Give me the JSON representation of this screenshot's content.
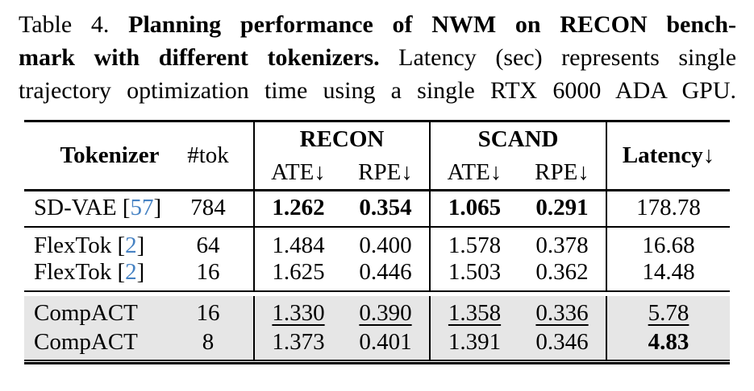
{
  "caption": {
    "label": "Table 4.",
    "line1_bold": "Planning performance of NWM on RECON bench-",
    "line2_bold": "mark with different tokenizers.",
    "line2_normal": "Latency (sec) represents single",
    "line3_normal": "trajectory optimization time using a single RTX 6000 ADA GPU."
  },
  "table": {
    "header": {
      "tokenizer": "Tokenizer",
      "tok": "#tok",
      "recon": "RECON",
      "scand": "SCAND",
      "ate": "ATE↓",
      "rpe": "RPE↓",
      "latency": "Latency↓"
    },
    "rows": [
      {
        "name": "SD-VAE",
        "cite_l": "[",
        "cite": "57",
        "cite_r": "]",
        "tok": "784",
        "r_ate": "1.262",
        "r_rpe": "0.354",
        "s_ate": "1.065",
        "s_rpe": "0.291",
        "lat": "178.78"
      },
      {
        "name": "FlexTok",
        "cite_l": "[",
        "cite": "2",
        "cite_r": "]",
        "tok": "64",
        "r_ate": "1.484",
        "r_rpe": "0.400",
        "s_ate": "1.578",
        "s_rpe": "0.378",
        "lat": "16.68"
      },
      {
        "name": "FlexTok",
        "cite_l": "[",
        "cite": "2",
        "cite_r": "]",
        "tok": "16",
        "r_ate": "1.625",
        "r_rpe": "0.446",
        "s_ate": "1.503",
        "s_rpe": "0.362",
        "lat": "14.48"
      },
      {
        "name": "CompACT",
        "tok": "16",
        "r_ate": "1.330",
        "r_rpe": "0.390",
        "s_ate": "1.358",
        "s_rpe": "0.336",
        "lat": "5.78"
      },
      {
        "name": "CompACT",
        "tok": "8",
        "r_ate": "1.373",
        "r_rpe": "0.401",
        "s_ate": "1.391",
        "s_rpe": "0.346",
        "lat": "4.83"
      }
    ]
  },
  "colors": {
    "citation_blue": "#4682C3",
    "highlight_gray": "#E6E6E6"
  }
}
